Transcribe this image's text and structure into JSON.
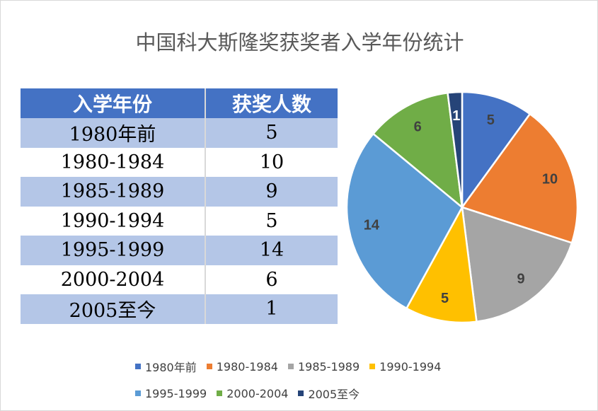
{
  "chart_data": {
    "type": "pie",
    "title": "中国科大斯隆奖获奖者入学年份统计",
    "categories": [
      "1980年前",
      "1980-1984",
      "1985-1989",
      "1990-1994",
      "1995-1999",
      "2000-2004",
      "2005至今"
    ],
    "values": [
      5,
      10,
      9,
      5,
      14,
      6,
      1
    ],
    "colors": [
      "#4472c4",
      "#ed7d31",
      "#a5a5a5",
      "#ffc000",
      "#5b9bd5",
      "#70ad47",
      "#264478"
    ],
    "legend_position": "bottom",
    "table": {
      "headers": [
        "入学年份",
        "获奖人数"
      ],
      "rows": [
        [
          "1980年前",
          "5"
        ],
        [
          "1980-1984",
          "10"
        ],
        [
          "1985-1989",
          "9"
        ],
        [
          "1990-1994",
          "5"
        ],
        [
          "1995-1999",
          "14"
        ],
        [
          "2000-2004",
          "6"
        ],
        [
          "2005至今",
          "1"
        ]
      ]
    }
  }
}
